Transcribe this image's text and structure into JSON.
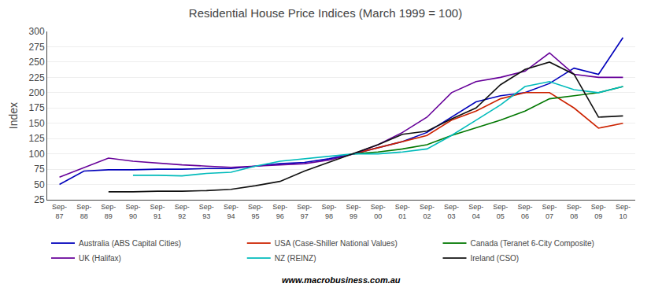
{
  "chart_data": {
    "type": "line",
    "title": "Residential House Price Indices (March 1999 = 100)",
    "ylabel": "Index",
    "annotations": [
      "www.macrobusiness.com.au"
    ],
    "categories": [
      "Sep-\n87",
      "Sep-\n88",
      "Sep-\n89",
      "Sep-\n90",
      "Sep-\n91",
      "Sep-\n92",
      "Sep-\n93",
      "Sep-\n94",
      "Sep-\n95",
      "Sep-\n96",
      "Sep-\n97",
      "Sep-\n98",
      "Sep-\n99",
      "Sep-\n00",
      "Sep-\n01",
      "Sep-\n02",
      "Sep-\n03",
      "Sep-\n04",
      "Sep-\n05",
      "Sep-\n06",
      "Sep-\n07",
      "Sep-\n08",
      "Sep-\n09",
      "Sep-\n10"
    ],
    "ylim": [
      25,
      300
    ],
    "yticks": [
      25,
      50,
      75,
      100,
      125,
      150,
      175,
      200,
      225,
      250,
      275,
      300
    ],
    "grid": true,
    "legend": "bottom",
    "series": [
      {
        "name": "Australia (ABS Capital Cities)",
        "color": "#0000BB",
        "values": [
          50,
          72,
          74,
          74,
          75,
          75,
          76,
          76,
          80,
          84,
          86,
          92,
          100,
          110,
          120,
          135,
          160,
          185,
          195,
          200,
          215,
          240,
          230,
          290
        ]
      },
      {
        "name": "USA (Case-Shiller National Values)",
        "color": "#CC2200",
        "values": [
          null,
          null,
          null,
          null,
          null,
          null,
          null,
          null,
          null,
          null,
          null,
          null,
          100,
          110,
          120,
          130,
          155,
          170,
          190,
          200,
          200,
          175,
          142,
          150
        ]
      },
      {
        "name": "Canada (Teranet 6-City Composite)",
        "color": "#007700",
        "values": [
          null,
          null,
          null,
          null,
          null,
          null,
          null,
          null,
          null,
          null,
          null,
          null,
          100,
          103,
          108,
          115,
          130,
          143,
          155,
          170,
          190,
          195,
          200,
          210
        ]
      },
      {
        "name": "UK (Halifax)",
        "color": "#660099",
        "values": [
          62,
          78,
          93,
          88,
          85,
          82,
          80,
          78,
          80,
          82,
          84,
          90,
          100,
          115,
          135,
          160,
          200,
          218,
          225,
          235,
          265,
          230,
          225,
          225
        ]
      },
      {
        "name": "NZ (REINZ)",
        "color": "#00BBBB",
        "values": [
          null,
          null,
          null,
          65,
          65,
          64,
          68,
          70,
          80,
          88,
          92,
          96,
          100,
          100,
          103,
          108,
          130,
          155,
          180,
          210,
          218,
          205,
          200,
          210
        ]
      },
      {
        "name": "Ireland (CSO)",
        "color": "#111111",
        "values": [
          null,
          null,
          38,
          38,
          39,
          39,
          40,
          42,
          48,
          55,
          72,
          86,
          100,
          115,
          132,
          137,
          157,
          175,
          213,
          238,
          250,
          230,
          160,
          162
        ]
      }
    ]
  }
}
